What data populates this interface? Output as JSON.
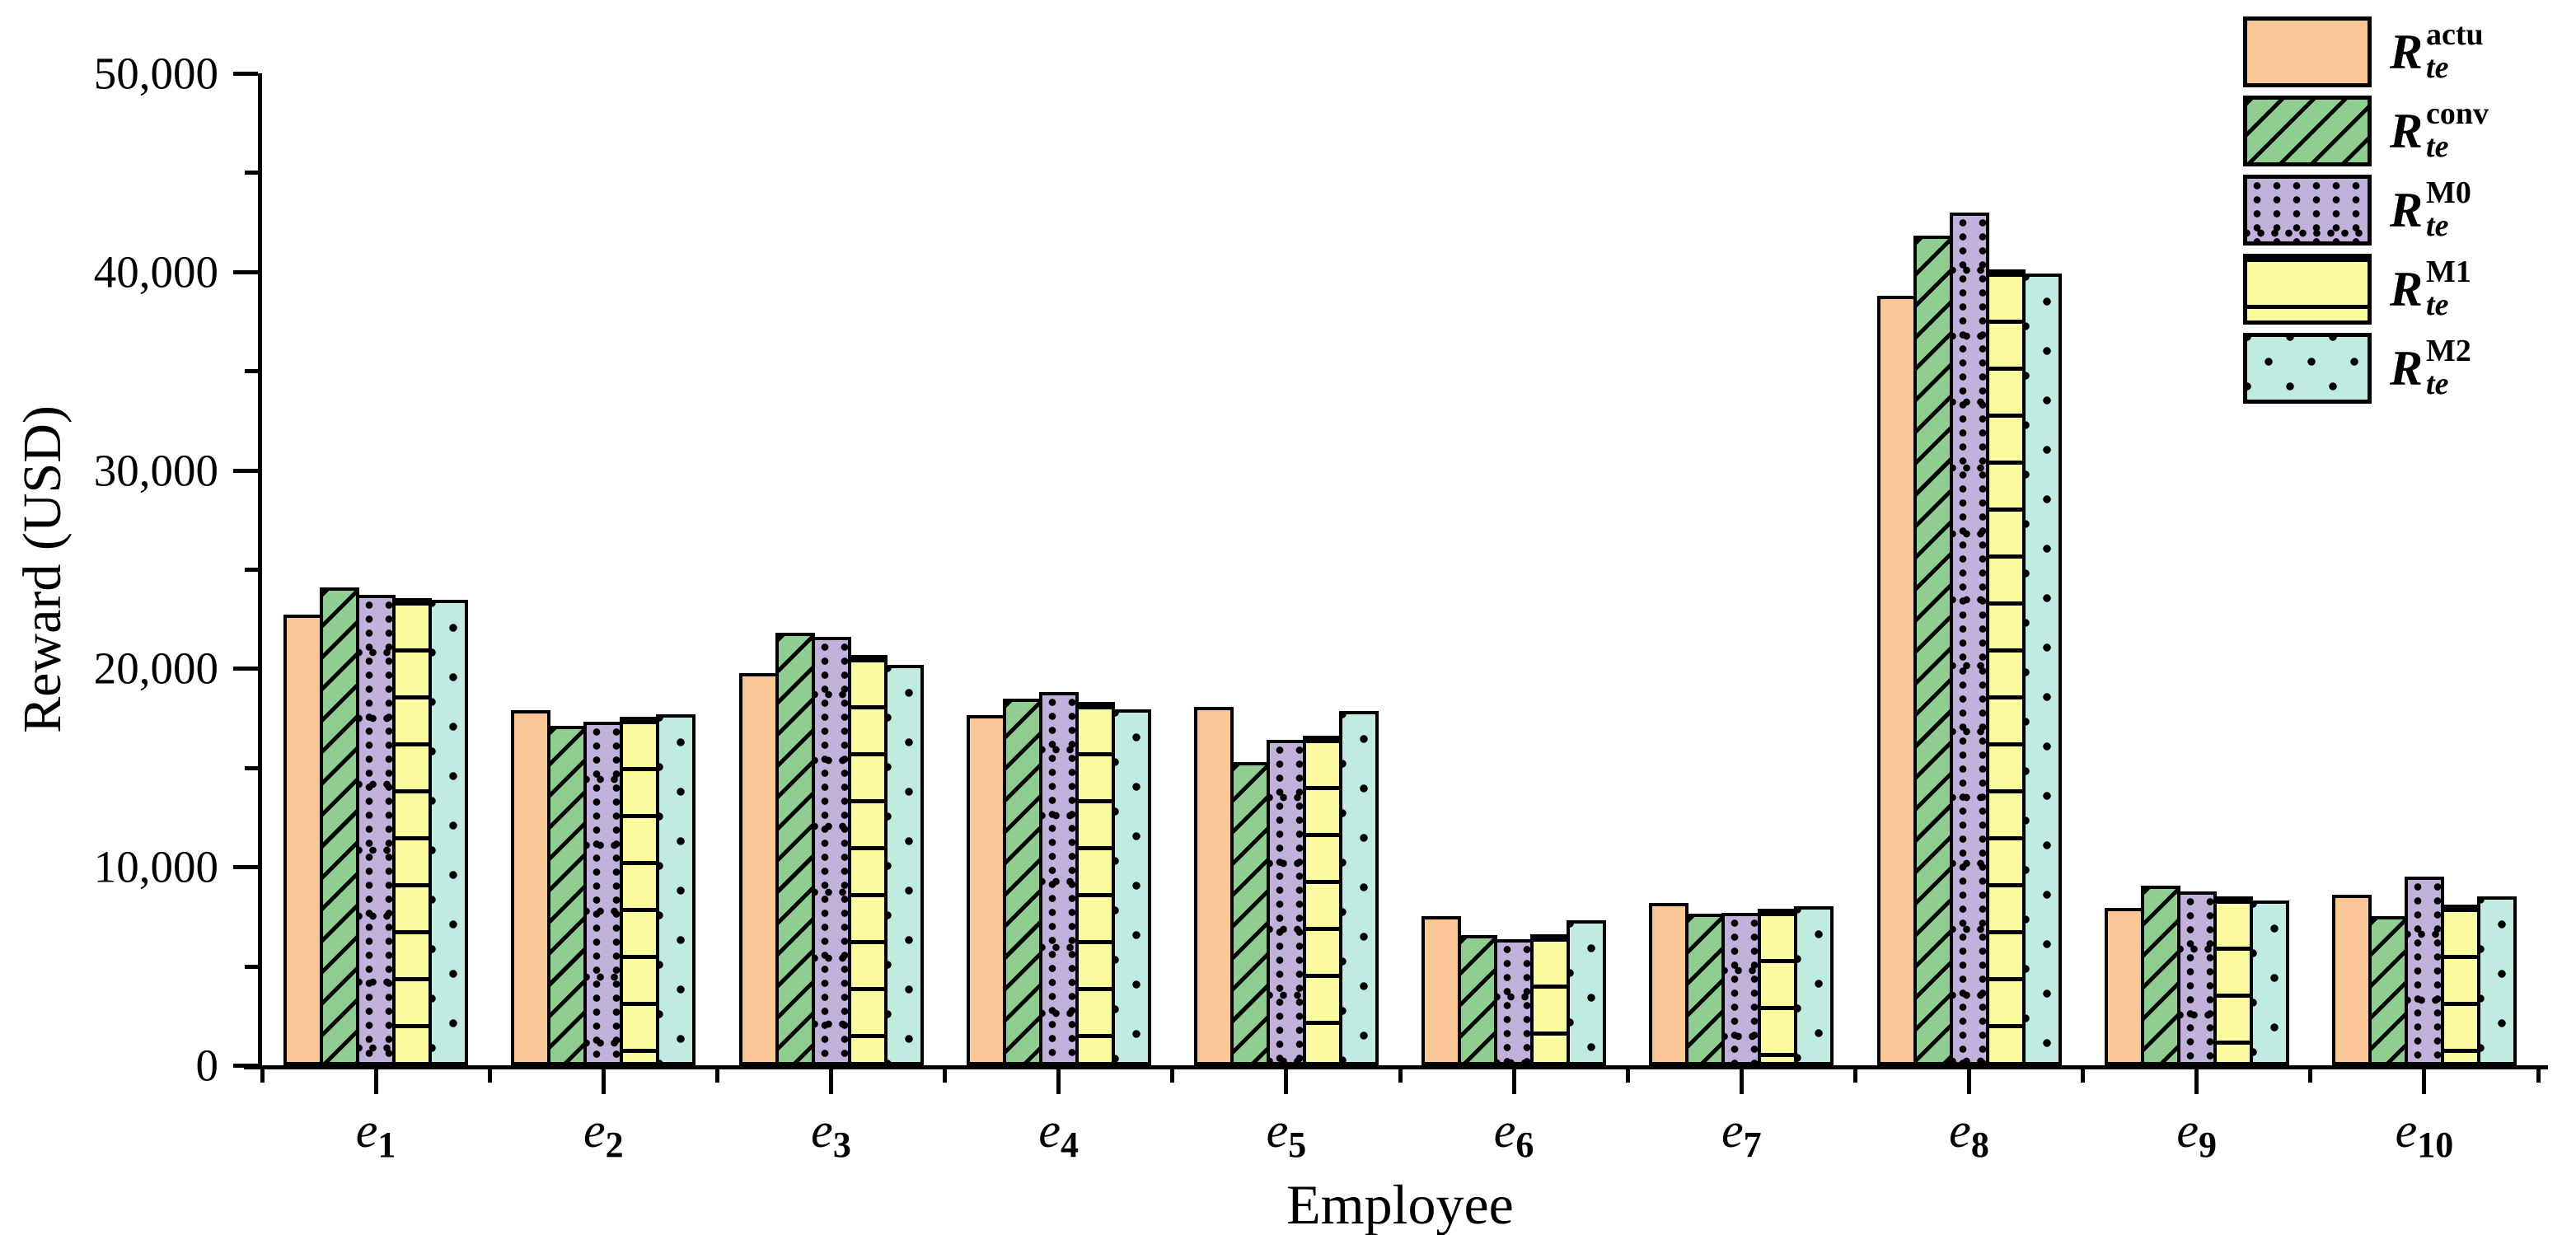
{
  "chart_data": {
    "type": "bar",
    "title": "",
    "xlabel": "Employee",
    "ylabel": "Reward (USD)",
    "ylim": [
      0,
      50000
    ],
    "ytick_major_step": 10000,
    "ytick_minor_step": 5000,
    "ytick_labels": [
      "0",
      "10,000",
      "20,000",
      "30,000",
      "40,000",
      "50,000"
    ],
    "grid": false,
    "legend_position": "upper right",
    "bar_edge_color": "#000000",
    "categories": [
      {
        "base": "e",
        "sub": "1"
      },
      {
        "base": "e",
        "sub": "2"
      },
      {
        "base": "e",
        "sub": "3"
      },
      {
        "base": "e",
        "sub": "4"
      },
      {
        "base": "e",
        "sub": "5"
      },
      {
        "base": "e",
        "sub": "6"
      },
      {
        "base": "e",
        "sub": "7"
      },
      {
        "base": "e",
        "sub": "8"
      },
      {
        "base": "e",
        "sub": "9"
      },
      {
        "base": "e",
        "sub": "10"
      }
    ],
    "series": [
      {
        "name": "R-te-actu",
        "label": {
          "base": "R",
          "sub": "te",
          "sup": "actu"
        },
        "color": "#F9C795",
        "hatch": "none",
        "values": [
          22700,
          17900,
          19750,
          17650,
          18050,
          7500,
          8200,
          38800,
          7950,
          8600
        ]
      },
      {
        "name": "R-te-conv",
        "label": {
          "base": "R",
          "sub": "te",
          "sup": "conv"
        },
        "color": "#90CD90",
        "hatch": "diagonal",
        "values": [
          24100,
          17100,
          21800,
          18500,
          15300,
          6550,
          7650,
          41800,
          9050,
          7500
        ]
      },
      {
        "name": "R-te-M0",
        "label": {
          "base": "R",
          "sub": "te",
          "sup": "M0"
        },
        "color": "#C2B1DB",
        "hatch": "dot-grid",
        "values": [
          23700,
          17300,
          21600,
          18800,
          16400,
          6350,
          7700,
          43000,
          8750,
          9500
        ]
      },
      {
        "name": "R-te-M1",
        "label": {
          "base": "R",
          "sub": "te",
          "sup": "M1"
        },
        "color": "#FBFA9E",
        "hatch": "hlines",
        "values": [
          23550,
          17550,
          20700,
          18300,
          16600,
          6600,
          7900,
          40100,
          8500,
          8100
        ]
      },
      {
        "name": "R-te-M2",
        "label": {
          "base": "R",
          "sub": "te",
          "sup": "M2"
        },
        "color": "#BFEBE0",
        "hatch": "dots",
        "values": [
          23450,
          17700,
          20200,
          17950,
          17850,
          7300,
          8000,
          39900,
          8300,
          8500
        ]
      }
    ]
  }
}
